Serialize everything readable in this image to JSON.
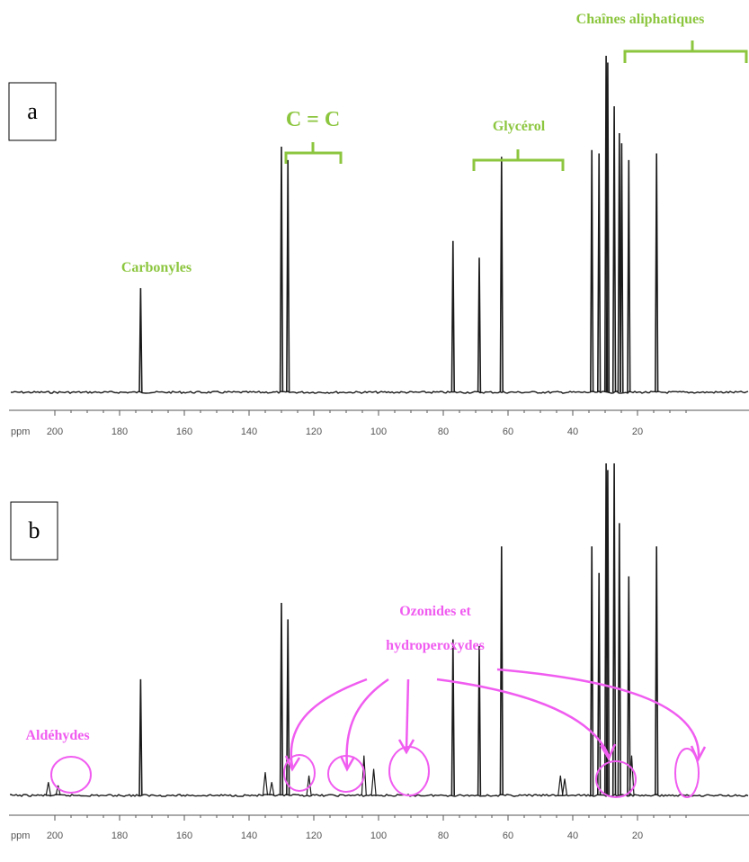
{
  "colors": {
    "green": "#8cc63f",
    "magenta": "#f05cf0",
    "trace": "#1a1a1a",
    "axis": "#555555"
  },
  "chart_data": [
    {
      "type": "line",
      "panel": "a",
      "xlabel": "ppm",
      "xlim": [
        215,
        5
      ],
      "x_reversed": true,
      "ticks": [
        "200",
        "180",
        "160",
        "140",
        "120",
        "100",
        "80",
        "60",
        "40",
        "20"
      ],
      "peaks": [
        {
          "ppm": 173.5,
          "intensity": 0.31
        },
        {
          "ppm": 130.0,
          "intensity": 0.73
        },
        {
          "ppm": 128.0,
          "intensity": 0.69
        },
        {
          "ppm": 77.0,
          "intensity": 0.45
        },
        {
          "ppm": 68.9,
          "intensity": 0.4
        },
        {
          "ppm": 62.0,
          "intensity": 0.7
        },
        {
          "ppm": 34.1,
          "intensity": 0.72
        },
        {
          "ppm": 31.9,
          "intensity": 0.71
        },
        {
          "ppm": 29.7,
          "intensity": 1.0
        },
        {
          "ppm": 29.2,
          "intensity": 0.98
        },
        {
          "ppm": 27.2,
          "intensity": 0.85
        },
        {
          "ppm": 25.6,
          "intensity": 0.77
        },
        {
          "ppm": 24.9,
          "intensity": 0.74
        },
        {
          "ppm": 22.7,
          "intensity": 0.69
        },
        {
          "ppm": 14.1,
          "intensity": 0.71
        }
      ],
      "annotations": [
        {
          "text": "Carbonyles",
          "color": "green"
        },
        {
          "text": "C = C",
          "color": "green",
          "bracket_ppm": [
            139,
            124
          ]
        },
        {
          "text": "Glycérol",
          "color": "green",
          "bracket_ppm": [
            84,
            59
          ]
        },
        {
          "text": "Chaînes aliphatiques",
          "color": "green",
          "bracket_ppm": [
            41,
            5
          ]
        }
      ]
    },
    {
      "type": "line",
      "panel": "b",
      "xlabel": "ppm",
      "xlim": [
        215,
        5
      ],
      "x_reversed": true,
      "ticks": [
        "200",
        "180",
        "160",
        "140",
        "120",
        "100",
        "80",
        "60",
        "40",
        "20"
      ],
      "peaks": [
        {
          "ppm": 202.0,
          "intensity": 0.04
        },
        {
          "ppm": 199.0,
          "intensity": 0.03
        },
        {
          "ppm": 173.5,
          "intensity": 0.35
        },
        {
          "ppm": 135.0,
          "intensity": 0.07
        },
        {
          "ppm": 133.0,
          "intensity": 0.04
        },
        {
          "ppm": 130.0,
          "intensity": 0.58
        },
        {
          "ppm": 128.0,
          "intensity": 0.53
        },
        {
          "ppm": 121.5,
          "intensity": 0.06
        },
        {
          "ppm": 104.5,
          "intensity": 0.12
        },
        {
          "ppm": 101.5,
          "intensity": 0.08
        },
        {
          "ppm": 77.0,
          "intensity": 0.47
        },
        {
          "ppm": 68.9,
          "intensity": 0.45
        },
        {
          "ppm": 62.0,
          "intensity": 0.75
        },
        {
          "ppm": 43.8,
          "intensity": 0.06
        },
        {
          "ppm": 42.5,
          "intensity": 0.05
        },
        {
          "ppm": 34.1,
          "intensity": 0.75
        },
        {
          "ppm": 31.9,
          "intensity": 0.67
        },
        {
          "ppm": 29.7,
          "intensity": 1.0
        },
        {
          "ppm": 29.2,
          "intensity": 0.98
        },
        {
          "ppm": 27.2,
          "intensity": 1.0
        },
        {
          "ppm": 25.6,
          "intensity": 0.82
        },
        {
          "ppm": 22.7,
          "intensity": 0.66
        },
        {
          "ppm": 21.8,
          "intensity": 0.12
        },
        {
          "ppm": 14.1,
          "intensity": 0.75
        }
      ],
      "annotations": [
        {
          "text": "Aldéhydes",
          "color": "magenta",
          "circle_ppm": 200
        },
        {
          "text": "Ozonides et",
          "color": "magenta"
        },
        {
          "text": "hydroperoxydes",
          "color": "magenta"
        }
      ],
      "circled_regions_ppm": [
        134,
        121,
        103,
        43,
        22
      ]
    }
  ]
}
